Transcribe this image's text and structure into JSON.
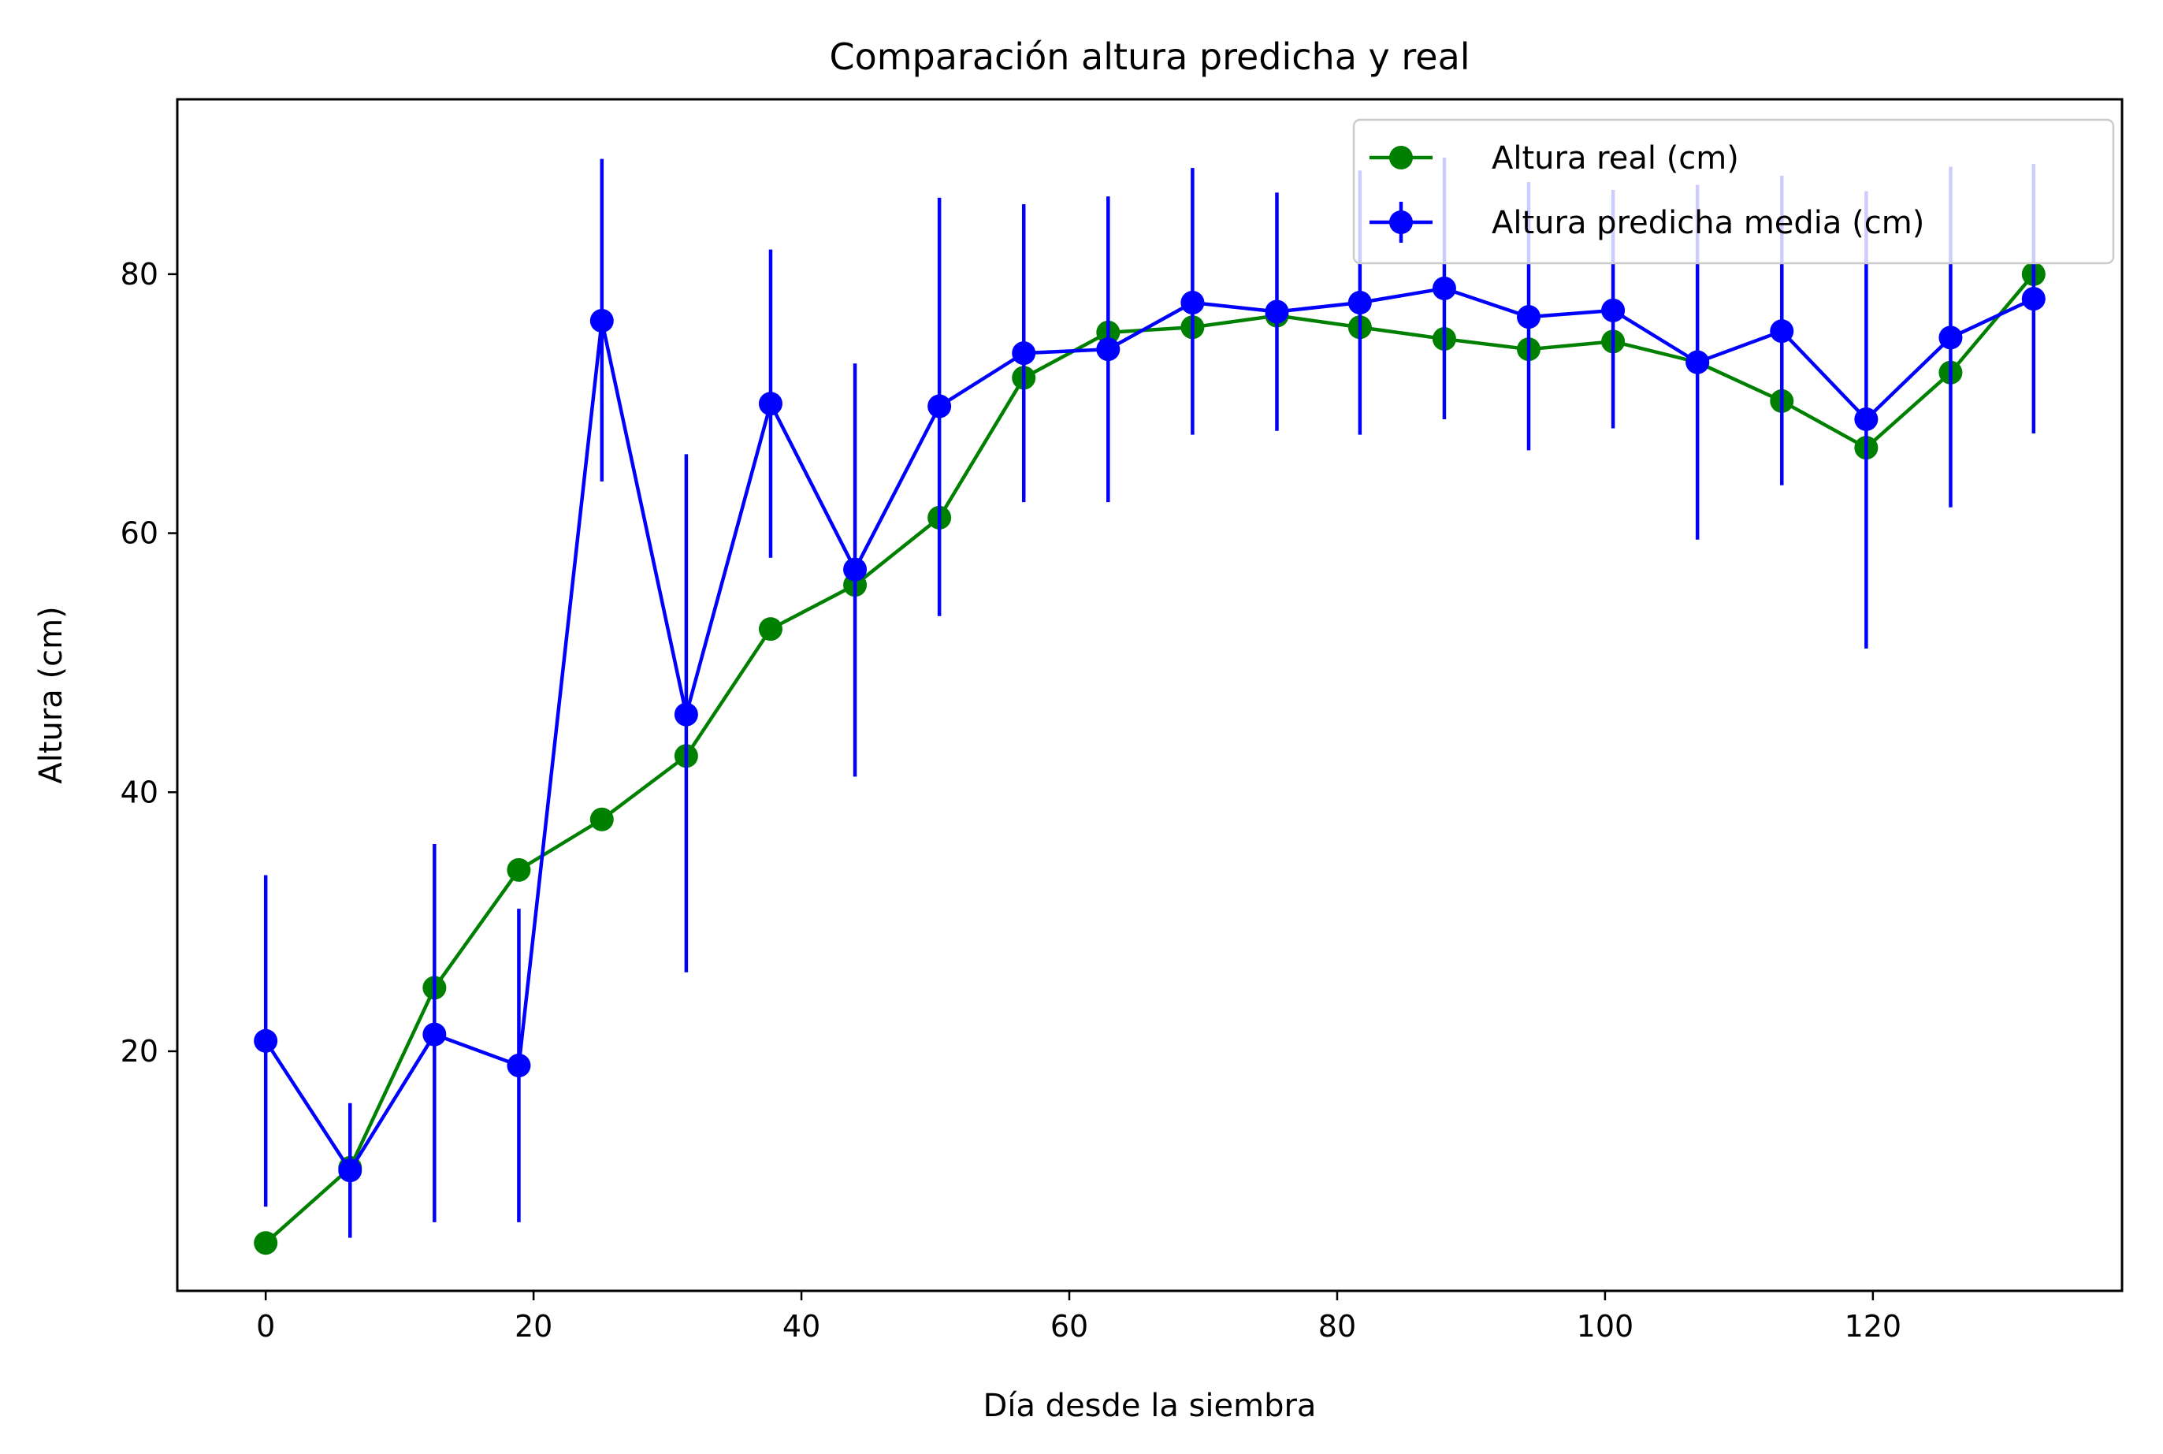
{
  "chart_data": {
    "type": "line",
    "title": "Comparación altura predicha y real",
    "xlabel": "Día desde la siembra",
    "ylabel": "Altura (cm)",
    "xlim": [
      -6.6,
      138.6
    ],
    "ylim": [
      1.5,
      93.5
    ],
    "xticks": [
      0,
      20,
      40,
      60,
      80,
      100,
      120
    ],
    "yticks": [
      20,
      40,
      60,
      80
    ],
    "grid": false,
    "legend_position": "top-right",
    "x": [
      0,
      6.3,
      12.6,
      18.9,
      25.1,
      31.4,
      37.7,
      44.0,
      50.3,
      56.6,
      62.9,
      69.2,
      75.5,
      81.7,
      88.0,
      94.3,
      100.6,
      106.9,
      113.2,
      119.5,
      125.8,
      132.0
    ],
    "series": [
      {
        "name": "Altura real (cm)",
        "color": "#008000",
        "marker": "circle",
        "y": [
          5.2,
          11.0,
          24.9,
          34.0,
          37.9,
          42.8,
          52.6,
          56.0,
          61.2,
          72.0,
          75.5,
          75.9,
          76.8,
          75.9,
          75.0,
          74.2,
          74.8,
          73.2,
          70.2,
          66.6,
          72.4,
          80.0
        ]
      },
      {
        "name": "Altura predicha media (cm)",
        "color": "#0000ff",
        "marker": "circle",
        "errorbars": true,
        "y": [
          20.8,
          10.8,
          21.3,
          18.9,
          76.4,
          46.0,
          70.0,
          57.2,
          69.8,
          73.9,
          74.2,
          77.8,
          77.1,
          77.8,
          78.9,
          76.7,
          77.2,
          73.2,
          75.6,
          68.8,
          75.1,
          78.1
        ],
        "err_low": [
          8.0,
          5.6,
          6.8,
          6.8,
          64.0,
          26.1,
          58.1,
          41.2,
          53.6,
          62.4,
          62.4,
          67.6,
          67.9,
          67.6,
          68.8,
          66.4,
          68.1,
          59.5,
          63.7,
          51.1,
          62.0,
          67.7
        ],
        "err_high": [
          33.6,
          16.0,
          36.0,
          31.0,
          88.9,
          66.1,
          81.9,
          73.1,
          85.9,
          85.4,
          86.0,
          88.2,
          86.3,
          88.0,
          89.0,
          87.1,
          86.5,
          86.9,
          87.6,
          86.4,
          88.3,
          88.5
        ]
      }
    ]
  }
}
